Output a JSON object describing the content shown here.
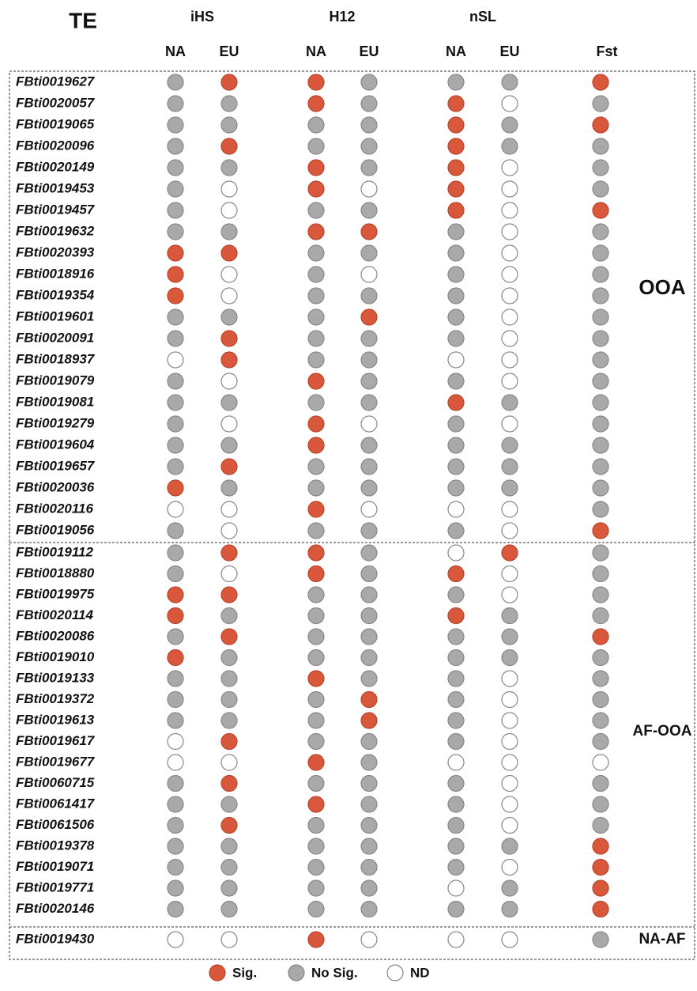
{
  "header": {
    "te": "TE",
    "groups": [
      "iHS",
      "H12",
      "nSL"
    ],
    "subheaders": [
      "NA",
      "EU",
      "NA",
      "EU",
      "NA",
      "EU",
      "Fst"
    ]
  },
  "sections": [
    {
      "label": "OOA",
      "rows": [
        {
          "te": "FBti0019627",
          "dots": [
            1,
            0,
            0,
            1,
            1,
            1,
            0
          ]
        },
        {
          "te": "FBti0020057",
          "dots": [
            1,
            1,
            0,
            1,
            0,
            2,
            1
          ]
        },
        {
          "te": "FBti0019065",
          "dots": [
            1,
            1,
            1,
            1,
            0,
            1,
            0
          ]
        },
        {
          "te": "FBti0020096",
          "dots": [
            1,
            0,
            1,
            1,
            0,
            1,
            1
          ]
        },
        {
          "te": "FBti0020149",
          "dots": [
            1,
            1,
            0,
            1,
            0,
            2,
            1
          ]
        },
        {
          "te": "FBti0019453",
          "dots": [
            1,
            2,
            0,
            2,
            0,
            2,
            1
          ]
        },
        {
          "te": "FBti0019457",
          "dots": [
            1,
            2,
            1,
            1,
            0,
            2,
            0
          ]
        },
        {
          "te": "FBti0019632",
          "dots": [
            1,
            1,
            0,
            0,
            1,
            2,
            1
          ]
        },
        {
          "te": "FBti0020393",
          "dots": [
            0,
            0,
            1,
            1,
            1,
            2,
            1
          ]
        },
        {
          "te": "FBti0018916",
          "dots": [
            0,
            2,
            1,
            2,
            1,
            2,
            1
          ]
        },
        {
          "te": "FBti0019354",
          "dots": [
            0,
            2,
            1,
            1,
            1,
            2,
            1
          ]
        },
        {
          "te": "FBti0019601",
          "dots": [
            1,
            1,
            1,
            0,
            1,
            2,
            1
          ]
        },
        {
          "te": "FBti0020091",
          "dots": [
            1,
            0,
            1,
            1,
            1,
            2,
            1
          ]
        },
        {
          "te": "FBti0018937",
          "dots": [
            2,
            0,
            1,
            1,
            2,
            2,
            1
          ]
        },
        {
          "te": "FBti0019079",
          "dots": [
            1,
            2,
            0,
            1,
            1,
            2,
            1
          ]
        },
        {
          "te": "FBti0019081",
          "dots": [
            1,
            1,
            1,
            1,
            0,
            1,
            1
          ]
        },
        {
          "te": "FBti0019279",
          "dots": [
            1,
            2,
            0,
            2,
            1,
            2,
            1
          ]
        },
        {
          "te": "FBti0019604",
          "dots": [
            1,
            1,
            0,
            1,
            1,
            1,
            1
          ]
        },
        {
          "te": "FBti0019657",
          "dots": [
            1,
            0,
            1,
            1,
            1,
            1,
            1
          ]
        },
        {
          "te": "FBti0020036",
          "dots": [
            0,
            1,
            1,
            1,
            1,
            1,
            1
          ]
        },
        {
          "te": "FBti0020116",
          "dots": [
            2,
            2,
            0,
            2,
            2,
            2,
            1
          ]
        },
        {
          "te": "FBti0019056",
          "dots": [
            1,
            2,
            1,
            1,
            1,
            2,
            0
          ]
        }
      ]
    },
    {
      "label": "AF-OOA",
      "rows": [
        {
          "te": "FBti0019112",
          "dots": [
            1,
            0,
            0,
            1,
            2,
            0,
            1
          ]
        },
        {
          "te": "FBti0018880",
          "dots": [
            1,
            2,
            0,
            1,
            0,
            2,
            1
          ]
        },
        {
          "te": "FBti0019975",
          "dots": [
            0,
            0,
            1,
            1,
            1,
            2,
            1
          ]
        },
        {
          "te": "FBti0020114",
          "dots": [
            0,
            1,
            1,
            1,
            0,
            1,
            1
          ]
        },
        {
          "te": "FBti0020086",
          "dots": [
            1,
            0,
            1,
            1,
            1,
            1,
            0
          ]
        },
        {
          "te": "FBti0019010",
          "dots": [
            0,
            1,
            1,
            1,
            1,
            1,
            1
          ]
        },
        {
          "te": "FBti0019133",
          "dots": [
            1,
            1,
            0,
            1,
            1,
            2,
            1
          ]
        },
        {
          "te": "FBti0019372",
          "dots": [
            1,
            1,
            1,
            0,
            1,
            2,
            1
          ]
        },
        {
          "te": "FBti0019613",
          "dots": [
            1,
            1,
            1,
            0,
            1,
            2,
            1
          ]
        },
        {
          "te": "FBti0019617",
          "dots": [
            2,
            0,
            1,
            1,
            1,
            2,
            1
          ]
        },
        {
          "te": "FBti0019677",
          "dots": [
            2,
            2,
            0,
            1,
            2,
            2,
            2
          ]
        },
        {
          "te": "FBti0060715",
          "dots": [
            1,
            0,
            1,
            1,
            1,
            2,
            1
          ]
        },
        {
          "te": "FBti0061417",
          "dots": [
            1,
            1,
            0,
            1,
            1,
            2,
            1
          ]
        },
        {
          "te": "FBti0061506",
          "dots": [
            1,
            0,
            1,
            1,
            1,
            2,
            1
          ]
        },
        {
          "te": "FBti0019378",
          "dots": [
            1,
            1,
            1,
            1,
            1,
            1,
            0
          ]
        },
        {
          "te": "FBti0019071",
          "dots": [
            1,
            1,
            1,
            1,
            1,
            2,
            0
          ]
        },
        {
          "te": "FBti0019771",
          "dots": [
            1,
            1,
            1,
            1,
            2,
            1,
            0
          ]
        },
        {
          "te": "FBti0020146",
          "dots": [
            1,
            1,
            1,
            1,
            1,
            1,
            0
          ]
        }
      ]
    },
    {
      "label": "NA-AF",
      "rows": [
        {
          "te": "FBti0019430",
          "dots": [
            2,
            2,
            0,
            2,
            2,
            2,
            1
          ]
        }
      ]
    }
  ],
  "legend": [
    {
      "label": "Sig.",
      "color": "#d9583b"
    },
    {
      "label": "No Sig.",
      "color": "#a9a9a9"
    },
    {
      "label": "ND",
      "color": "#ffffff"
    }
  ]
}
